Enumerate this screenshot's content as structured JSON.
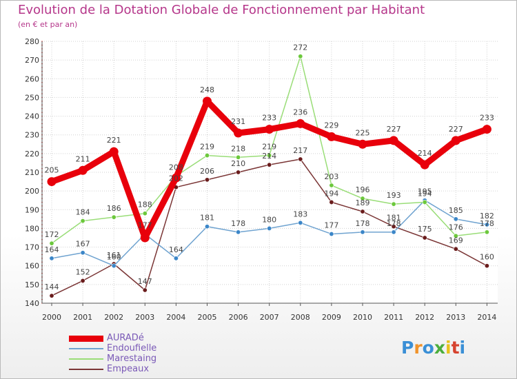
{
  "header": {
    "title": "Evolution de la Dotation Globale de Fonctionnement par Habitant",
    "subtitle": "(en € et par an)"
  },
  "logo": {
    "text": "Proxiti",
    "letters": [
      "P",
      "r",
      "o",
      "x",
      "i",
      "t",
      "i"
    ],
    "colors": [
      "#3a8fd6",
      "#f0932b",
      "#3a8fd6",
      "#4cae3c",
      "#e8c21d",
      "#d6432f",
      "#3a8fd6"
    ]
  },
  "chart_data": {
    "type": "line",
    "title": "Evolution de la Dotation Globale de Fonctionnement par Habitant",
    "subtitle": "(en € et par an)",
    "xlabel": "",
    "ylabel": "",
    "categories": [
      "2000",
      "2001",
      "2002",
      "2003",
      "2004",
      "2005",
      "2006",
      "2007",
      "2008",
      "2009",
      "2010",
      "2011",
      "2012",
      "2013",
      "2014"
    ],
    "ylim": [
      140,
      280
    ],
    "yticks": [
      140,
      150,
      160,
      170,
      180,
      190,
      200,
      210,
      220,
      230,
      240,
      250,
      260,
      270,
      280
    ],
    "grid": true,
    "legend_position": "bottom-left",
    "series": [
      {
        "name": "AURADé",
        "color": "#e8000b",
        "marker_color": "#e8000b",
        "style": "thick",
        "values": [
          205,
          211,
          221,
          175,
          207,
          248,
          231,
          233,
          236,
          229,
          225,
          227,
          214,
          227,
          233
        ],
        "labels": [
          "205",
          "211",
          "221",
          "",
          "",
          "248",
          "231",
          "233",
          "236",
          "229",
          "225",
          "227",
          "214",
          "227",
          "233"
        ]
      },
      {
        "name": "Endoufielle",
        "color": "#6fa3d0",
        "marker_color": "#3b86c8",
        "style": "thin",
        "values": [
          164,
          167,
          160,
          177,
          164,
          181,
          178,
          180,
          183,
          177,
          178,
          178,
          195,
          185,
          182
        ],
        "labels": [
          "164",
          "167",
          "160",
          "177",
          "164",
          "181",
          "178",
          "180",
          "183",
          "177",
          "178",
          "178",
          "195",
          "185",
          "182"
        ]
      },
      {
        "name": "Marestaing",
        "color": "#99dd77",
        "marker_color": "#6cc83c",
        "style": "thin",
        "values": [
          172,
          184,
          186,
          188,
          208,
          219,
          218,
          219,
          272,
          203,
          196,
          193,
          194,
          176,
          178
        ],
        "labels": [
          "172",
          "184",
          "186",
          "188",
          "208",
          "219",
          "218",
          "219",
          "272",
          "203",
          "196",
          "193",
          "194",
          "176",
          "178"
        ]
      },
      {
        "name": "Empeaux",
        "color": "#7a3535",
        "marker_color": "#6a1c1c",
        "style": "thin",
        "values": [
          144,
          152,
          161,
          147,
          202,
          206,
          210,
          214,
          217,
          194,
          189,
          181,
          175,
          169,
          160
        ],
        "labels": [
          "144",
          "152",
          "161",
          "147",
          "202",
          "206",
          "210",
          "214",
          "217",
          "194",
          "189",
          "181",
          "175",
          "169",
          "160"
        ]
      }
    ]
  }
}
